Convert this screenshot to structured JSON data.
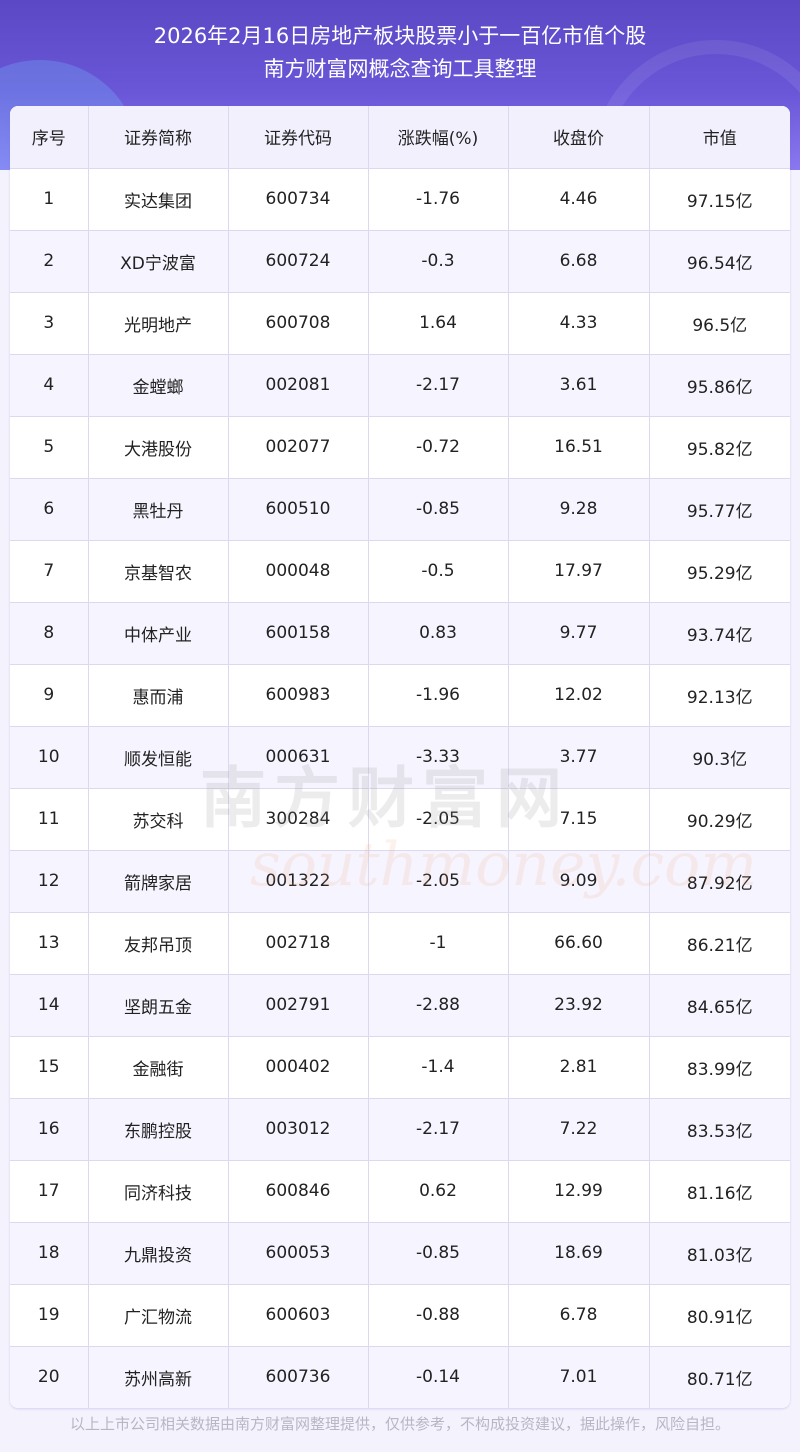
{
  "header": {
    "title_line1": "2026年2月16日房地产板块股票小于一百亿市值个股",
    "title_line2": "南方财富网概念查询工具整理"
  },
  "table": {
    "columns": [
      "序号",
      "证券简称",
      "证券代码",
      "涨跌幅(%)",
      "收盘价",
      "市值"
    ],
    "rows": [
      [
        "1",
        "实达集团",
        "600734",
        "-1.76",
        "4.46",
        "97.15亿"
      ],
      [
        "2",
        "XD宁波富",
        "600724",
        "-0.3",
        "6.68",
        "96.54亿"
      ],
      [
        "3",
        "光明地产",
        "600708",
        "1.64",
        "4.33",
        "96.5亿"
      ],
      [
        "4",
        "金螳螂",
        "002081",
        "-2.17",
        "3.61",
        "95.86亿"
      ],
      [
        "5",
        "大港股份",
        "002077",
        "-0.72",
        "16.51",
        "95.82亿"
      ],
      [
        "6",
        "黑牡丹",
        "600510",
        "-0.85",
        "9.28",
        "95.77亿"
      ],
      [
        "7",
        "京基智农",
        "000048",
        "-0.5",
        "17.97",
        "95.29亿"
      ],
      [
        "8",
        "中体产业",
        "600158",
        "0.83",
        "9.77",
        "93.74亿"
      ],
      [
        "9",
        "惠而浦",
        "600983",
        "-1.96",
        "12.02",
        "92.13亿"
      ],
      [
        "10",
        "顺发恒能",
        "000631",
        "-3.33",
        "3.77",
        "90.3亿"
      ],
      [
        "11",
        "苏交科",
        "300284",
        "-2.05",
        "7.15",
        "90.29亿"
      ],
      [
        "12",
        "箭牌家居",
        "001322",
        "-2.05",
        "9.09",
        "87.92亿"
      ],
      [
        "13",
        "友邦吊顶",
        "002718",
        "-1",
        "66.60",
        "86.21亿"
      ],
      [
        "14",
        "坚朗五金",
        "002791",
        "-2.88",
        "23.92",
        "84.65亿"
      ],
      [
        "15",
        "金融街",
        "000402",
        "-1.4",
        "2.81",
        "83.99亿"
      ],
      [
        "16",
        "东鹏控股",
        "003012",
        "-2.17",
        "7.22",
        "83.53亿"
      ],
      [
        "17",
        "同济科技",
        "600846",
        "0.62",
        "12.99",
        "81.16亿"
      ],
      [
        "18",
        "九鼎投资",
        "600053",
        "-0.85",
        "18.69",
        "81.03亿"
      ],
      [
        "19",
        "广汇物流",
        "600603",
        "-0.88",
        "6.78",
        "80.91亿"
      ],
      [
        "20",
        "苏州高新",
        "600736",
        "-0.14",
        "7.01",
        "80.71亿"
      ]
    ]
  },
  "watermark": {
    "cn": "南方财富网",
    "en": "southmoney.com"
  },
  "footer": {
    "disclaimer": "以上上市公司相关数据由南方财富网整理提供，仅供参考，不构成投资建议，据此操作，风险自担。"
  }
}
